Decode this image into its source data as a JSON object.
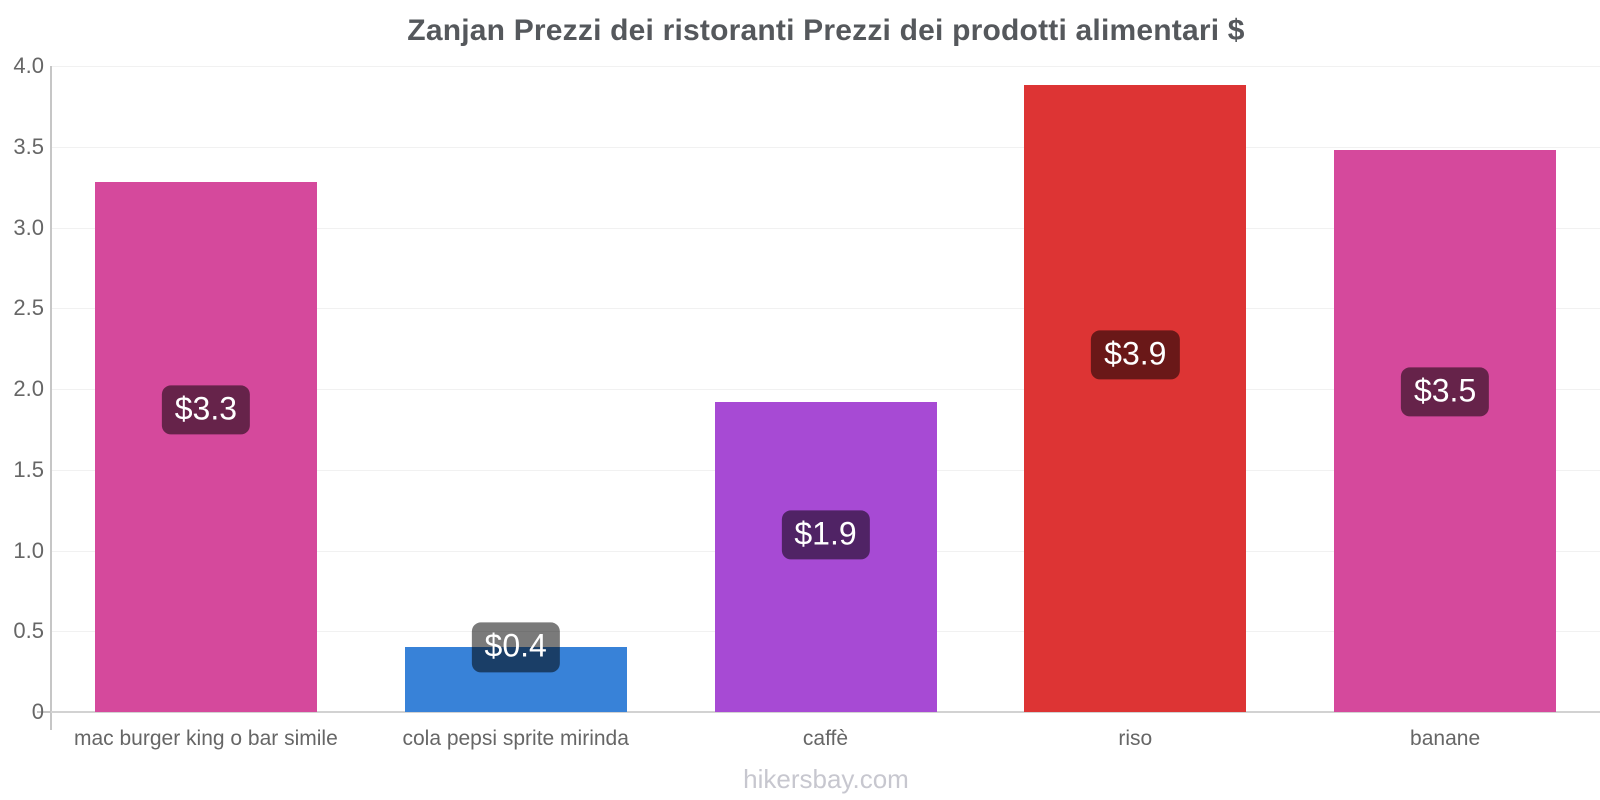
{
  "title": "Zanjan Prezzi dei ristoranti Prezzi dei prodotti alimentari $",
  "footer": "hikersbay.com",
  "chart_data": {
    "type": "bar",
    "title": "Zanjan Prezzi dei ristoranti Prezzi dei prodotti alimentari $",
    "categories": [
      "mac burger king o bar simile",
      "cola pepsi sprite mirinda",
      "caffè",
      "riso",
      "banane"
    ],
    "values": [
      3.28,
      0.4,
      1.92,
      3.88,
      3.48
    ],
    "data_labels": [
      "$3.3",
      "$0.4",
      "$1.9",
      "$3.9",
      "$3.5"
    ],
    "bar_colors": [
      "#d5499c",
      "#3882d8",
      "#a74ad4",
      "#dd3434",
      "#d5499c"
    ],
    "badge_color": "rgba(0,0,0,0.52)",
    "xlabel": "",
    "ylabel": "",
    "ylim": [
      0,
      4.0
    ],
    "ytick_labels": [
      "0",
      "0.5",
      "1.0",
      "1.5",
      "2.0",
      "2.5",
      "3.0",
      "3.5",
      "4.0"
    ],
    "ytick_values": [
      0,
      0.5,
      1.0,
      1.5,
      2.0,
      2.5,
      3.0,
      3.5,
      4.0
    ],
    "grid": "horizontal",
    "legend": "none",
    "watermark": "hikersbay.com"
  }
}
